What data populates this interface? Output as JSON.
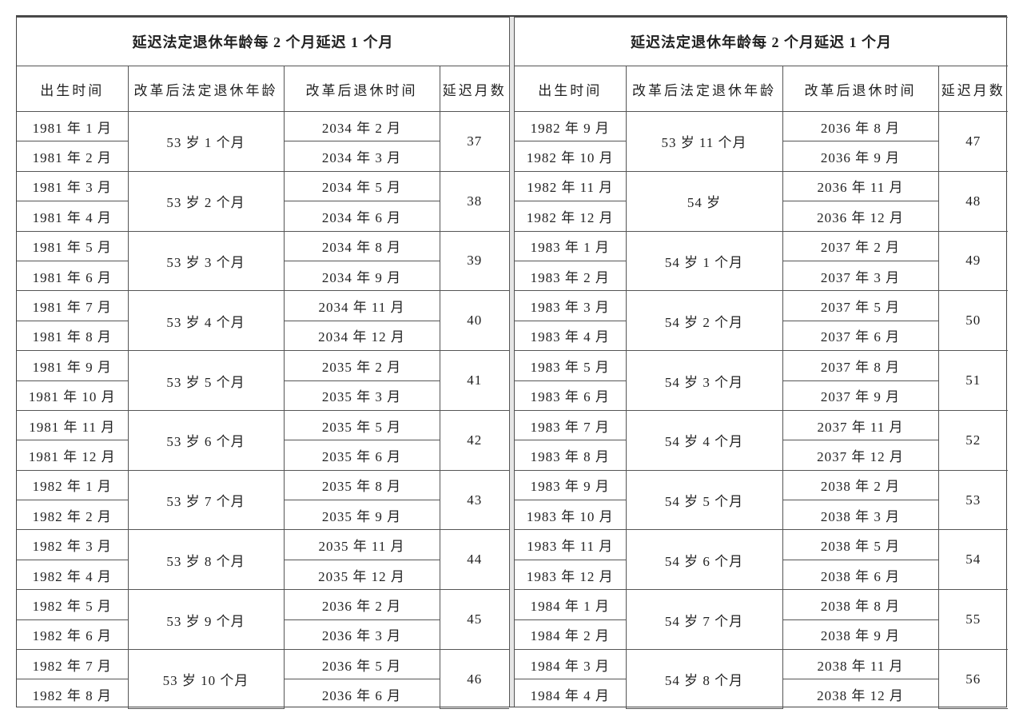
{
  "tables": [
    {
      "title": "延迟法定退休年龄每 2 个月延迟 1 个月",
      "headers": [
        "出生时间",
        "改革后法定退休年龄",
        "改革后退休时间",
        "延迟月数"
      ],
      "groups": [
        {
          "births": [
            "1981 年 1 月",
            "1981 年 2 月"
          ],
          "age": "53 岁 1 个月",
          "retire": [
            "2034 年 2 月",
            "2034 年 3 月"
          ],
          "months": "37"
        },
        {
          "births": [
            "1981 年 3 月",
            "1981 年 4 月"
          ],
          "age": "53 岁 2 个月",
          "retire": [
            "2034 年 5 月",
            "2034 年 6 月"
          ],
          "months": "38"
        },
        {
          "births": [
            "1981 年 5 月",
            "1981 年 6 月"
          ],
          "age": "53 岁 3 个月",
          "retire": [
            "2034 年 8 月",
            "2034 年 9 月"
          ],
          "months": "39"
        },
        {
          "births": [
            "1981 年 7 月",
            "1981 年 8 月"
          ],
          "age": "53 岁 4 个月",
          "retire": [
            "2034 年 11 月",
            "2034 年 12 月"
          ],
          "months": "40"
        },
        {
          "births": [
            "1981 年 9 月",
            "1981 年 10 月"
          ],
          "age": "53 岁 5 个月",
          "retire": [
            "2035 年 2 月",
            "2035 年 3 月"
          ],
          "months": "41"
        },
        {
          "births": [
            "1981 年 11 月",
            "1981 年 12 月"
          ],
          "age": "53 岁 6 个月",
          "retire": [
            "2035 年 5 月",
            "2035 年 6 月"
          ],
          "months": "42"
        },
        {
          "births": [
            "1982 年 1 月",
            "1982 年 2 月"
          ],
          "age": "53 岁 7 个月",
          "retire": [
            "2035 年 8 月",
            "2035 年 9 月"
          ],
          "months": "43"
        },
        {
          "births": [
            "1982 年 3 月",
            "1982 年 4 月"
          ],
          "age": "53 岁 8 个月",
          "retire": [
            "2035 年 11 月",
            "2035 年 12 月"
          ],
          "months": "44"
        },
        {
          "births": [
            "1982 年 5 月",
            "1982 年 6 月"
          ],
          "age": "53 岁 9 个月",
          "retire": [
            "2036 年 2 月",
            "2036 年 3 月"
          ],
          "months": "45"
        },
        {
          "births": [
            "1982 年 7 月",
            "1982 年 8 月"
          ],
          "age": "53 岁 10 个月",
          "retire": [
            "2036 年 5 月",
            "2036 年 6 月"
          ],
          "months": "46"
        }
      ]
    },
    {
      "title": "延迟法定退休年龄每 2 个月延迟 1 个月",
      "headers": [
        "出生时间",
        "改革后法定退休年龄",
        "改革后退休时间",
        "延迟月数"
      ],
      "groups": [
        {
          "births": [
            "1982 年 9 月",
            "1982 年 10 月"
          ],
          "age": "53 岁 11 个月",
          "retire": [
            "2036 年 8 月",
            "2036 年 9 月"
          ],
          "months": "47"
        },
        {
          "births": [
            "1982 年 11 月",
            "1982 年 12 月"
          ],
          "age": "54 岁",
          "retire": [
            "2036 年 11 月",
            "2036 年 12 月"
          ],
          "months": "48"
        },
        {
          "births": [
            "1983 年 1 月",
            "1983 年 2 月"
          ],
          "age": "54 岁 1 个月",
          "retire": [
            "2037 年 2 月",
            "2037 年 3 月"
          ],
          "months": "49"
        },
        {
          "births": [
            "1983 年 3 月",
            "1983 年 4 月"
          ],
          "age": "54 岁 2 个月",
          "retire": [
            "2037 年 5 月",
            "2037 年 6 月"
          ],
          "months": "50"
        },
        {
          "births": [
            "1983 年 5 月",
            "1983 年 6 月"
          ],
          "age": "54 岁 3 个月",
          "retire": [
            "2037 年 8 月",
            "2037 年 9 月"
          ],
          "months": "51"
        },
        {
          "births": [
            "1983 年 7 月",
            "1983 年 8 月"
          ],
          "age": "54 岁 4 个月",
          "retire": [
            "2037 年 11 月",
            "2037 年 12 月"
          ],
          "months": "52"
        },
        {
          "births": [
            "1983 年 9 月",
            "1983 年 10 月"
          ],
          "age": "54 岁 5 个月",
          "retire": [
            "2038 年 2 月",
            "2038 年 3 月"
          ],
          "months": "53"
        },
        {
          "births": [
            "1983 年 11 月",
            "1983 年 12 月"
          ],
          "age": "54 岁 6 个月",
          "retire": [
            "2038 年 5 月",
            "2038 年 6 月"
          ],
          "months": "54"
        },
        {
          "births": [
            "1984 年 1 月",
            "1984 年 2 月"
          ],
          "age": "54 岁 7 个月",
          "retire": [
            "2038 年 8 月",
            "2038 年 9 月"
          ],
          "months": "55"
        },
        {
          "births": [
            "1984 年 3 月",
            "1984 年 4 月"
          ],
          "age": "54 岁 8 个月",
          "retire": [
            "2038 年 11 月",
            "2038 年 12 月"
          ],
          "months": "56"
        }
      ]
    }
  ]
}
